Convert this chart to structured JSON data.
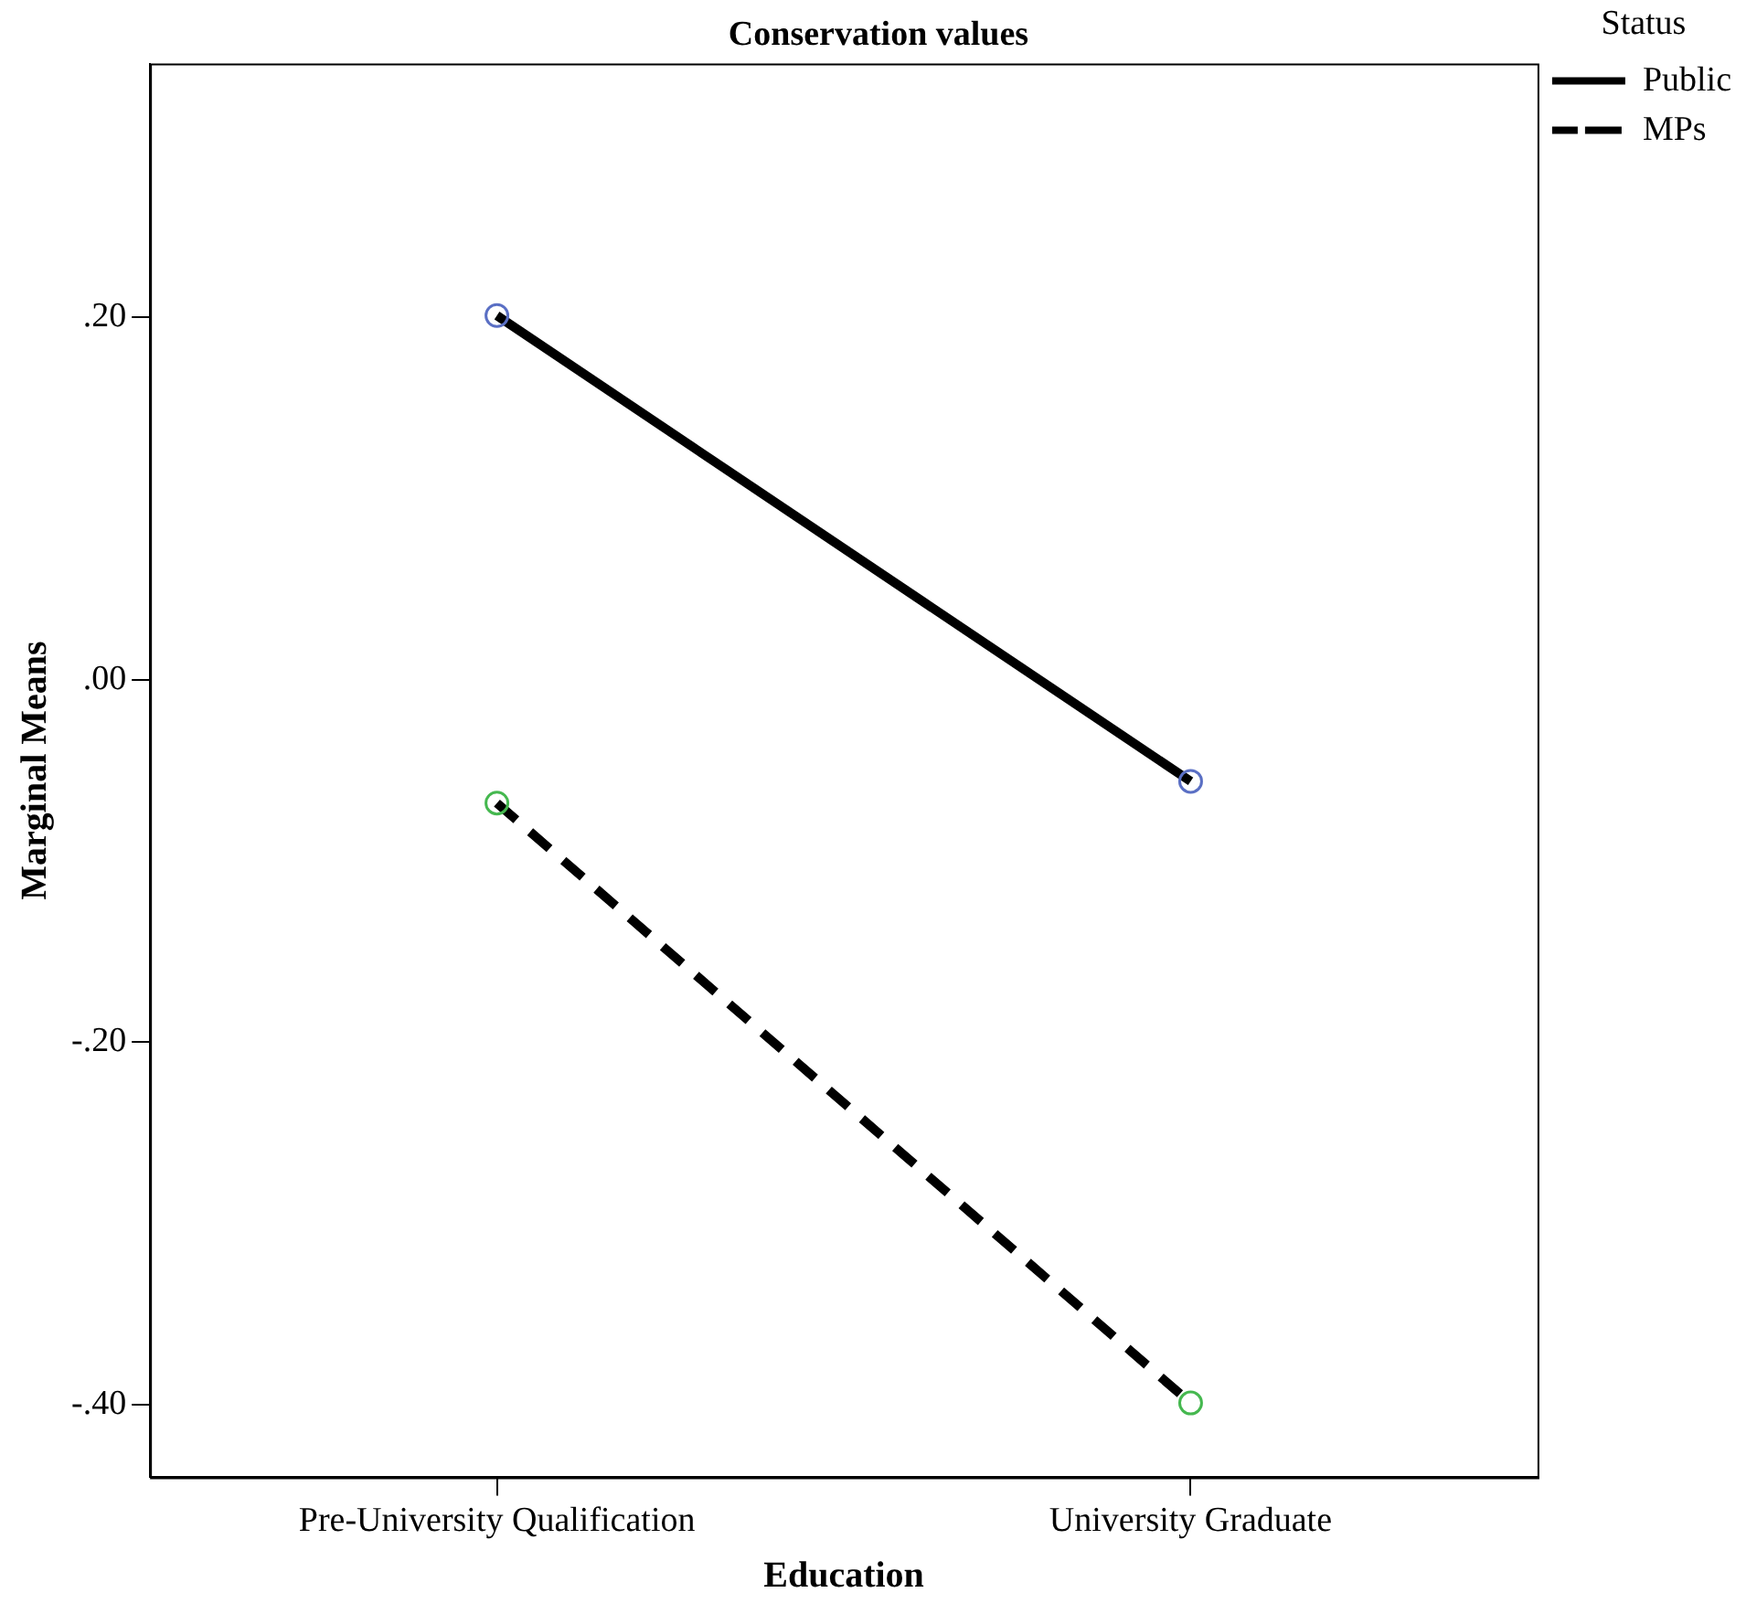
{
  "chart_data": {
    "type": "line",
    "title": "Conservation values",
    "xlabel": "Education",
    "ylabel": "Marginal Means",
    "legend_title": "Status",
    "categories": [
      "Pre-University Qualification",
      "University Graduate"
    ],
    "series": [
      {
        "name": "Public",
        "color": "#000000",
        "colors": [
          "#5a6fc4",
          "#5a6fc4"
        ],
        "line_style": "solid",
        "values": [
          0.201,
          -0.056
        ]
      },
      {
        "name": "MPs",
        "color": "#000000",
        "colors": [
          "#45b84f",
          "#45b84f"
        ],
        "line_style": "dashed",
        "values": [
          -0.068,
          -0.399
        ]
      }
    ],
    "ylim": [
      -0.44,
      0.34
    ],
    "yticks": [
      {
        "value": 0.2,
        "label": ".20"
      },
      {
        "value": 0,
        "label": ".00"
      },
      {
        "value": -0.2,
        "label": "-.20"
      },
      {
        "value": -0.4,
        "label": "-.40"
      }
    ],
    "grid": false,
    "legend": "top right",
    "marker": "circle"
  }
}
